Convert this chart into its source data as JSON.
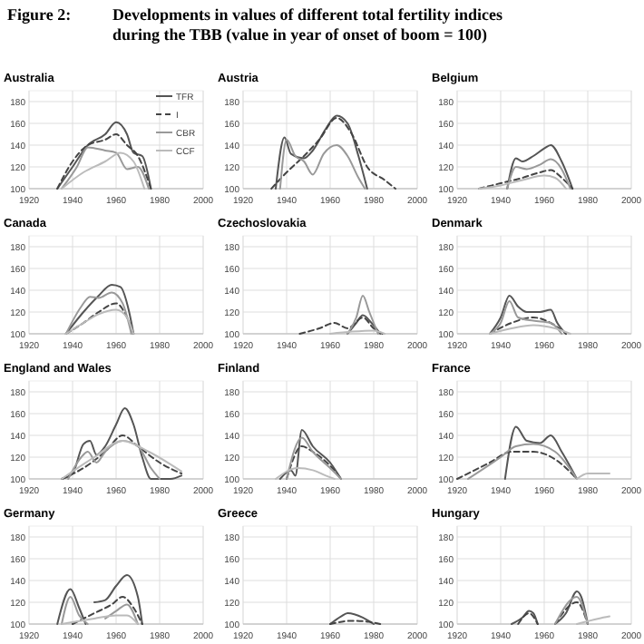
{
  "chart_data": [
    {
      "type": "line",
      "title": "Australia",
      "annotations": [
        "Figure 2:",
        "Developments in values of different total fertility indices during the TBB (value in year of onset of boom = 100)"
      ],
      "xlim": [
        1920,
        2000
      ],
      "xticks": [
        1920,
        1940,
        1960,
        1980,
        2000
      ],
      "ylim": [
        100,
        190
      ],
      "yticks": [
        100,
        120,
        140,
        160,
        180
      ],
      "grid": true,
      "legend": "top right",
      "series": [
        {
          "name": "TFR",
          "color": "#555555",
          "x": [
            1933,
            1940,
            1947,
            1955,
            1960,
            1965,
            1968,
            1972,
            1976
          ],
          "values": [
            100,
            120,
            140,
            150,
            161,
            150,
            133,
            130,
            100
          ]
        },
        {
          "name": "I",
          "color": "#444444",
          "line_style": "dashed",
          "x": [
            1933,
            1940,
            1947,
            1955,
            1960,
            1965,
            1970,
            1976
          ],
          "values": [
            100,
            125,
            140,
            145,
            150,
            140,
            130,
            100
          ]
        },
        {
          "name": "CBR",
          "color": "#999999",
          "x": [
            1935,
            1942,
            1947,
            1955,
            1960,
            1965,
            1970,
            1975
          ],
          "values": [
            100,
            120,
            138,
            135,
            133,
            118,
            120,
            100
          ]
        },
        {
          "name": "CCF",
          "color": "#bbbbbb",
          "x": [
            1935,
            1945,
            1955,
            1962,
            1968,
            1973
          ],
          "values": [
            100,
            115,
            125,
            133,
            125,
            100
          ]
        }
      ]
    },
    {
      "type": "line",
      "title": "Austria",
      "xlim": [
        1920,
        2000
      ],
      "xticks": [
        1920,
        1940,
        1960,
        1980,
        2000
      ],
      "ylim": [
        100,
        190
      ],
      "yticks": [
        100,
        120,
        140,
        160,
        180
      ],
      "grid": true,
      "series": [
        {
          "color": "#555555",
          "x": [
            1935,
            1939,
            1942,
            1948,
            1952,
            1958,
            1963,
            1968,
            1973,
            1977
          ],
          "values": [
            100,
            147,
            132,
            128,
            135,
            155,
            167,
            160,
            130,
            100
          ]
        },
        {
          "color": "#444444",
          "line_style": "dashed",
          "x": [
            1933,
            1940,
            1948,
            1955,
            1963,
            1970,
            1977,
            1985,
            1990
          ],
          "values": [
            100,
            115,
            130,
            145,
            165,
            150,
            120,
            108,
            100
          ]
        },
        {
          "color": "#999999",
          "x": [
            1937,
            1940,
            1944,
            1948,
            1952,
            1957,
            1963,
            1968,
            1973,
            1976
          ],
          "values": [
            100,
            145,
            130,
            125,
            113,
            132,
            140,
            130,
            110,
            100
          ]
        }
      ]
    },
    {
      "type": "line",
      "title": "Belgium",
      "xlim": [
        1920,
        2000
      ],
      "xticks": [
        1920,
        1940,
        1960,
        1980,
        2000
      ],
      "ylim": [
        100,
        190
      ],
      "yticks": [
        100,
        120,
        140,
        160,
        180
      ],
      "grid": true,
      "series": [
        {
          "color": "#555555",
          "x": [
            1943,
            1947,
            1950,
            1955,
            1960,
            1963,
            1968,
            1973
          ],
          "values": [
            100,
            128,
            125,
            130,
            137,
            140,
            125,
            100
          ]
        },
        {
          "color": "#444444",
          "line_style": "dashed",
          "x": [
            1930,
            1940,
            1950,
            1958,
            1963,
            1968,
            1973
          ],
          "values": [
            100,
            105,
            110,
            115,
            117,
            110,
            100
          ]
        },
        {
          "color": "#999999",
          "x": [
            1943,
            1947,
            1952,
            1958,
            1963,
            1968,
            1972
          ],
          "values": [
            100,
            120,
            118,
            122,
            127,
            118,
            100
          ]
        },
        {
          "color": "#bbbbbb",
          "x": [
            1930,
            1940,
            1950,
            1960,
            1965,
            1970
          ],
          "values": [
            100,
            103,
            108,
            112,
            110,
            100
          ]
        }
      ]
    },
    {
      "type": "line",
      "title": "Canada",
      "xlim": [
        1920,
        2000
      ],
      "xticks": [
        1920,
        1940,
        1960,
        1980,
        2000
      ],
      "ylim": [
        100,
        190
      ],
      "yticks": [
        100,
        120,
        140,
        160,
        180
      ],
      "grid": true,
      "series": [
        {
          "color": "#555555",
          "x": [
            1937,
            1945,
            1952,
            1958,
            1962,
            1966,
            1968
          ],
          "values": [
            100,
            120,
            135,
            145,
            143,
            120,
            100
          ]
        },
        {
          "color": "#444444",
          "line_style": "dashed",
          "x": [
            1937,
            1945,
            1952,
            1960,
            1965,
            1968
          ],
          "values": [
            100,
            110,
            120,
            128,
            115,
            100
          ]
        },
        {
          "color": "#999999",
          "x": [
            1937,
            1944,
            1948,
            1952,
            1958,
            1963,
            1967
          ],
          "values": [
            100,
            125,
            134,
            133,
            138,
            128,
            100
          ]
        },
        {
          "color": "#bbbbbb",
          "x": [
            1937,
            1945,
            1952,
            1960,
            1965,
            1968
          ],
          "values": [
            100,
            110,
            118,
            122,
            115,
            100
          ]
        }
      ]
    },
    {
      "type": "line",
      "title": "Czechoslovakia",
      "xlim": [
        1920,
        2000
      ],
      "xticks": [
        1920,
        1940,
        1960,
        1980,
        2000
      ],
      "ylim": [
        100,
        190
      ],
      "yticks": [
        100,
        120,
        140,
        160,
        180
      ],
      "grid": true,
      "series": [
        {
          "color": "#555555",
          "x": [
            1968,
            1972,
            1975,
            1979,
            1983
          ],
          "values": [
            100,
            110,
            117,
            110,
            100
          ]
        },
        {
          "color": "#444444",
          "line_style": "dashed",
          "x": [
            1946,
            1955,
            1962,
            1968,
            1975,
            1980,
            1984
          ],
          "values": [
            100,
            105,
            110,
            105,
            115,
            105,
            100
          ]
        },
        {
          "color": "#999999",
          "x": [
            1968,
            1972,
            1975,
            1978,
            1982
          ],
          "values": [
            100,
            115,
            135,
            120,
            100
          ]
        },
        {
          "color": "#bbbbbb",
          "x": [
            1960,
            1970,
            1980,
            1985
          ],
          "values": [
            100,
            102,
            103,
            100
          ]
        }
      ]
    },
    {
      "type": "line",
      "title": "Denmark",
      "xlim": [
        1920,
        2000
      ],
      "xticks": [
        1920,
        1940,
        1960,
        1980,
        2000
      ],
      "ylim": [
        100,
        190
      ],
      "yticks": [
        100,
        120,
        140,
        160,
        180
      ],
      "grid": true,
      "series": [
        {
          "color": "#555555",
          "x": [
            1935,
            1940,
            1944,
            1948,
            1952,
            1958,
            1963,
            1966,
            1970
          ],
          "values": [
            100,
            115,
            135,
            125,
            120,
            120,
            122,
            110,
            100
          ]
        },
        {
          "color": "#444444",
          "line_style": "dashed",
          "x": [
            1935,
            1945,
            1955,
            1963,
            1970
          ],
          "values": [
            100,
            110,
            115,
            110,
            100
          ]
        },
        {
          "color": "#999999",
          "x": [
            1935,
            1940,
            1944,
            1948,
            1955,
            1963,
            1968
          ],
          "values": [
            100,
            110,
            130,
            115,
            112,
            110,
            100
          ]
        },
        {
          "color": "#bbbbbb",
          "x": [
            1935,
            1945,
            1955,
            1965,
            1972
          ],
          "values": [
            100,
            105,
            108,
            105,
            100
          ]
        }
      ]
    },
    {
      "type": "line",
      "title": "England and Wales",
      "xlim": [
        1920,
        2000
      ],
      "xticks": [
        1920,
        1940,
        1960,
        1980,
        2000
      ],
      "ylim": [
        100,
        190
      ],
      "yticks": [
        100,
        120,
        140,
        160,
        180
      ],
      "grid": true,
      "series": [
        {
          "color": "#555555",
          "x": [
            1935,
            1940,
            1945,
            1948,
            1951,
            1955,
            1960,
            1964,
            1968,
            1972,
            1976,
            1985,
            1990
          ],
          "values": [
            100,
            105,
            132,
            135,
            122,
            130,
            150,
            165,
            150,
            120,
            100,
            100,
            103
          ]
        },
        {
          "color": "#444444",
          "line_style": "dashed",
          "x": [
            1935,
            1945,
            1955,
            1963,
            1970,
            1980,
            1990
          ],
          "values": [
            100,
            110,
            125,
            140,
            130,
            115,
            105
          ]
        },
        {
          "color": "#999999",
          "x": [
            1938,
            1944,
            1947,
            1951,
            1955,
            1963,
            1970,
            1976,
            1980
          ],
          "values": [
            100,
            120,
            125,
            115,
            125,
            135,
            130,
            110,
            100
          ]
        },
        {
          "color": "#bbbbbb",
          "x": [
            1935,
            1950,
            1963,
            1975,
            1990
          ],
          "values": [
            100,
            120,
            135,
            125,
            107
          ]
        }
      ]
    },
    {
      "type": "line",
      "title": "Finland",
      "xlim": [
        1920,
        2000
      ],
      "xticks": [
        1920,
        1940,
        1960,
        1980,
        2000
      ],
      "ylim": [
        100,
        190
      ],
      "yticks": [
        100,
        120,
        140,
        160,
        180
      ],
      "grid": true,
      "series": [
        {
          "color": "#555555",
          "x": [
            1937,
            1942,
            1944,
            1947,
            1952,
            1960,
            1965
          ],
          "values": [
            100,
            108,
            103,
            145,
            130,
            115,
            100
          ]
        },
        {
          "color": "#444444",
          "line_style": "dashed",
          "x": [
            1940,
            1947,
            1952,
            1960,
            1965
          ],
          "values": [
            100,
            130,
            125,
            112,
            100
          ]
        },
        {
          "color": "#999999",
          "x": [
            1940,
            1947,
            1952,
            1960,
            1965
          ],
          "values": [
            100,
            138,
            125,
            110,
            100
          ]
        },
        {
          "color": "#bbbbbb",
          "x": [
            1935,
            1945,
            1952,
            1958,
            1962
          ],
          "values": [
            100,
            110,
            108,
            103,
            100
          ]
        }
      ]
    },
    {
      "type": "line",
      "title": "France",
      "xlim": [
        1920,
        2000
      ],
      "xticks": [
        1920,
        1940,
        1960,
        1980,
        2000
      ],
      "ylim": [
        100,
        190
      ],
      "yticks": [
        100,
        120,
        140,
        160,
        180
      ],
      "grid": true,
      "series": [
        {
          "color": "#555555",
          "x": [
            1942,
            1947,
            1952,
            1958,
            1963,
            1968,
            1975
          ],
          "values": [
            100,
            148,
            135,
            133,
            140,
            125,
            100
          ]
        },
        {
          "color": "#444444",
          "line_style": "dashed",
          "x": [
            1920,
            1935,
            1945,
            1955,
            1965,
            1975
          ],
          "values": [
            100,
            115,
            125,
            125,
            118,
            100
          ]
        },
        {
          "color": "#999999",
          "x": [
            1925,
            1940,
            1947,
            1955,
            1965,
            1975
          ],
          "values": [
            100,
            120,
            130,
            132,
            125,
            100
          ]
        },
        {
          "color": "#bbbbbb",
          "x": [
            1975,
            1980,
            1990
          ],
          "values": [
            100,
            105,
            105
          ]
        }
      ]
    },
    {
      "type": "line",
      "title": "Germany",
      "xlim": [
        1920,
        2000
      ],
      "xticks": [
        1920,
        1940,
        1960,
        1980,
        2000
      ],
      "ylim": [
        100,
        190
      ],
      "yticks": [
        100,
        120,
        140,
        160,
        180
      ],
      "grid": true,
      "series": [
        {
          "color": "#555555",
          "x": [
            1933,
            1939,
            1943,
            1946,
            1947,
            1950,
            1955,
            1960,
            1965,
            1970,
            1972
          ],
          "values": [
            100,
            132,
            115,
            100,
            null,
            120,
            122,
            135,
            145,
            125,
            100
          ]
        },
        {
          "color": "#444444",
          "line_style": "dashed",
          "x": [
            1940,
            1950,
            1958,
            1963,
            1968,
            1972
          ],
          "values": [
            100,
            110,
            118,
            125,
            115,
            100
          ]
        },
        {
          "color": "#999999",
          "x": [
            1935,
            1939,
            1943,
            1947,
            1950,
            1955,
            1960,
            1965,
            1970
          ],
          "values": [
            100,
            125,
            108,
            100,
            null,
            105,
            112,
            118,
            100
          ]
        },
        {
          "color": "#bbbbbb",
          "x": [
            1935,
            1950,
            1960,
            1965,
            1970
          ],
          "values": [
            100,
            105,
            108,
            108,
            100
          ]
        }
      ]
    },
    {
      "type": "line",
      "title": "Greece",
      "xlim": [
        1920,
        2000
      ],
      "xticks": [
        1920,
        1940,
        1960,
        1980,
        2000
      ],
      "ylim": [
        100,
        190
      ],
      "yticks": [
        100,
        120,
        140,
        160,
        180
      ],
      "grid": true,
      "series": [
        {
          "color": "#555555",
          "x": [
            1960,
            1965,
            1968,
            1975,
            1980
          ],
          "values": [
            100,
            107,
            110,
            106,
            100
          ]
        },
        {
          "color": "#444444",
          "line_style": "dashed",
          "x": [
            1960,
            1970,
            1978,
            1983
          ],
          "values": [
            100,
            103,
            102,
            100
          ]
        }
      ]
    },
    {
      "type": "line",
      "title": "Hungary",
      "xlim": [
        1920,
        2000
      ],
      "xticks": [
        1920,
        1940,
        1960,
        1980,
        2000
      ],
      "ylim": [
        100,
        190
      ],
      "yticks": [
        100,
        120,
        140,
        160,
        180
      ],
      "grid": true,
      "series": [
        {
          "color": "#555555",
          "x": [
            1965,
            1970,
            1975,
            1977,
            1980
          ],
          "values": [
            100,
            110,
            130,
            125,
            100
          ]
        },
        {
          "color": "#444444",
          "line_style": "dashed",
          "x": [
            1965,
            1975,
            1980
          ],
          "values": [
            100,
            120,
            100
          ]
        },
        {
          "color": "#555555",
          "x": [
            1945,
            1950,
            1953,
            1955,
            1957
          ],
          "values": [
            100,
            106,
            112,
            110,
            100
          ]
        },
        {
          "color": "#444444",
          "line_style": "dashed",
          "x": [
            1948,
            1953,
            1957
          ],
          "values": [
            100,
            110,
            100
          ]
        },
        {
          "color": "#999999",
          "x": [
            1965,
            1975,
            1980
          ],
          "values": [
            100,
            125,
            100
          ]
        },
        {
          "color": "#bbbbbb",
          "x": [
            1975,
            1985,
            1990
          ],
          "values": [
            100,
            105,
            107
          ]
        }
      ]
    }
  ]
}
